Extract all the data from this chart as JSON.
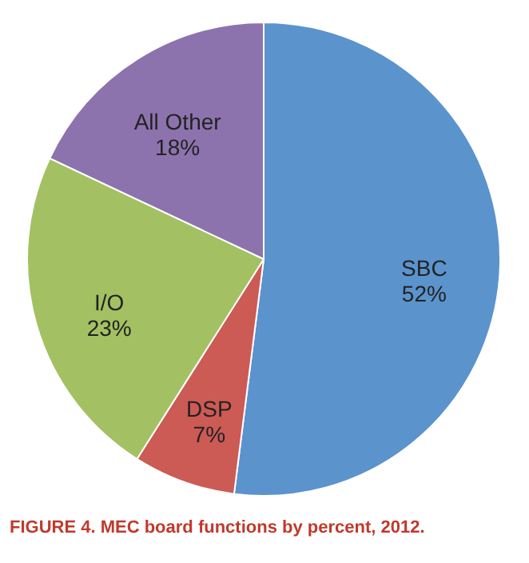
{
  "chart_data": {
    "type": "pie",
    "categories": [
      "SBC",
      "DSP",
      "I/O",
      "All Other"
    ],
    "values": [
      52,
      7,
      23,
      18
    ],
    "colors": [
      "#5b93cd",
      "#cc5a55",
      "#a3c162",
      "#8d73ad"
    ],
    "value_labels": [
      "52%",
      "7%",
      "23%",
      "18%"
    ],
    "legend": false,
    "annotations": [
      "FIGURE 4. MEC board functions by percent, 2012."
    ]
  }
}
